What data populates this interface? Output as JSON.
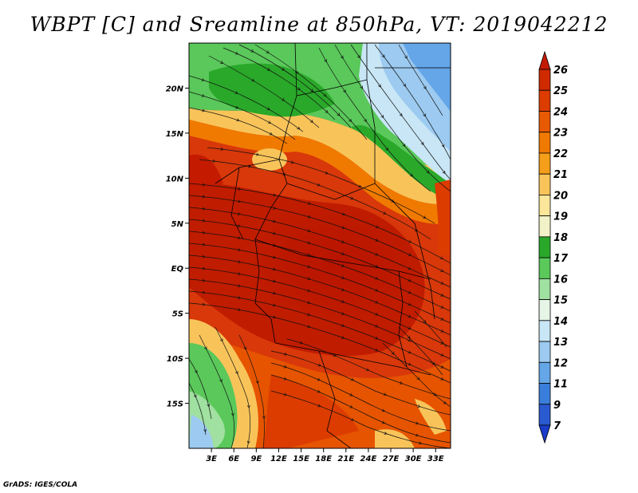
{
  "title": "WBPT [C] and Sreamline at 850hPa, VT: 2019042212",
  "footer": "GrADS: IGES/COLA",
  "map": {
    "region": "Central Africa",
    "lon_range": [
      0,
      35
    ],
    "lat_range": [
      -20,
      25
    ],
    "lat_ticks": [
      "20N",
      "15N",
      "10N",
      "5N",
      "EQ",
      "5S",
      "10S",
      "15S"
    ],
    "lon_ticks": [
      "3E",
      "6E",
      "9E",
      "12E",
      "15E",
      "18E",
      "21E",
      "24E",
      "27E",
      "30E",
      "33E"
    ]
  },
  "colorbar": {
    "levels": [
      "26",
      "25",
      "24",
      "23",
      "22",
      "21",
      "20",
      "19",
      "18",
      "17",
      "16",
      "15",
      "14",
      "13",
      "12",
      "11",
      "9",
      "7"
    ],
    "colors": [
      "#c41a00",
      "#cf2a00",
      "#dc3c00",
      "#e85a00",
      "#f07a00",
      "#f59e1a",
      "#f8c45a",
      "#fbe699",
      "#f2f2c8",
      "#2aa82a",
      "#5ac85a",
      "#a0e0a0",
      "#e6f5e6",
      "#c8e6f5",
      "#9ccaf0",
      "#64a6e8",
      "#3a7edc",
      "#2a5ad0",
      "#1a3cc8"
    ]
  }
}
